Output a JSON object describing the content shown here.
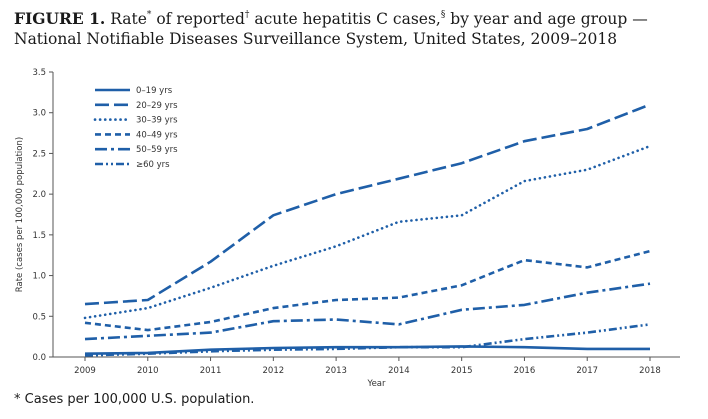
{
  "title": {
    "label": "FIGURE 1.",
    "part1": " Rate",
    "mark1": "*",
    "part2": " of reported",
    "mark2": "†",
    "part3": " acute hepatitis C cases,",
    "mark3": "§",
    "part4": " by year and age group — National Notifiable Diseases Surveillance System, United States, 2009–2018"
  },
  "footnote": "* Cases per 100,000 U.S. population.",
  "colors": {
    "series": "#1f5fa8",
    "axis": "#555555"
  },
  "chart_data": {
    "type": "line",
    "xlabel": "Year",
    "ylabel": "Rate (cases per 100,000 population)",
    "x": [
      "2009",
      "2010",
      "2011",
      "2012",
      "2013",
      "2014",
      "2015",
      "2016",
      "2017",
      "2018"
    ],
    "ylim": [
      0,
      3.5
    ],
    "yticks": [
      "0.0",
      "0.5",
      "1.0",
      "1.5",
      "2.0",
      "2.5",
      "3.0",
      "3.5"
    ],
    "grid": false,
    "legend_position": "top-left",
    "series": [
      {
        "name": "0–19 yrs",
        "dash": "solid",
        "values": [
          0.04,
          0.05,
          0.09,
          0.11,
          0.12,
          0.12,
          0.13,
          0.12,
          0.1,
          0.1
        ]
      },
      {
        "name": "20–29 yrs",
        "dash": "long-dash",
        "values": [
          0.65,
          0.7,
          1.17,
          1.74,
          2.0,
          2.19,
          2.38,
          2.65,
          2.8,
          3.1
        ]
      },
      {
        "name": "30–39 yrs",
        "dash": "dotted",
        "values": [
          0.48,
          0.6,
          0.85,
          1.12,
          1.36,
          1.66,
          1.74,
          2.16,
          2.3,
          2.59
        ]
      },
      {
        "name": "40–49 yrs",
        "dash": "short-dash",
        "values": [
          0.42,
          0.33,
          0.43,
          0.6,
          0.7,
          0.73,
          0.88,
          1.19,
          1.1,
          1.3
        ]
      },
      {
        "name": "50–59 yrs",
        "dash": "dash-dot",
        "values": [
          0.22,
          0.26,
          0.3,
          0.44,
          0.46,
          0.4,
          0.58,
          0.64,
          0.79,
          0.9
        ]
      },
      {
        "name": "≥60 yrs",
        "dash": "dash-dot-dot",
        "values": [
          0.02,
          0.04,
          0.07,
          0.09,
          0.1,
          0.12,
          0.12,
          0.22,
          0.3,
          0.4
        ]
      }
    ]
  }
}
